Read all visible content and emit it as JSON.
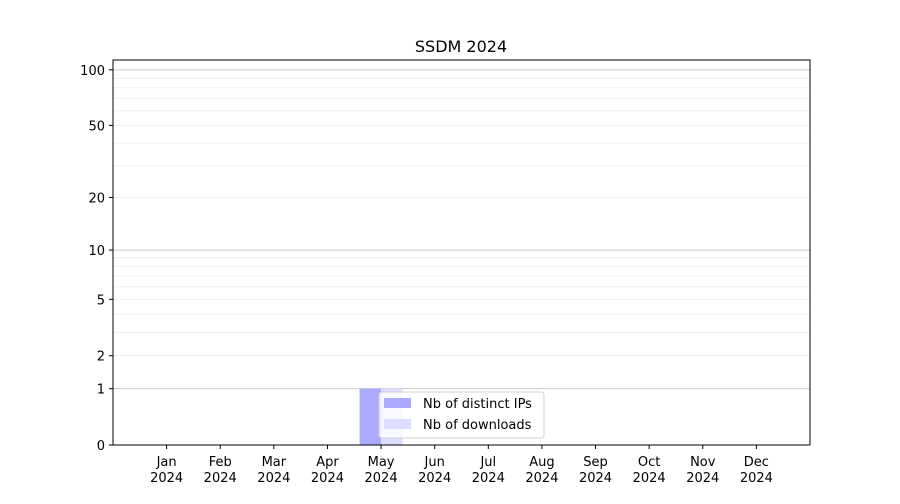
{
  "chart_data": {
    "type": "bar",
    "title": "SSDM 2024",
    "xlabel": "",
    "ylabel": "",
    "yscale": "log(1+y)",
    "ylim": [
      0,
      113
    ],
    "grid": "y major and minor",
    "legend_position": "lower-center",
    "categories": [
      "Jan\n2024",
      "Feb\n2024",
      "Mar\n2024",
      "Apr\n2024",
      "May\n2024",
      "Jun\n2024",
      "Jul\n2024",
      "Aug\n2024",
      "Sep\n2024",
      "Oct\n2024",
      "Nov\n2024",
      "Dec\n2024"
    ],
    "yticks": [
      0,
      1,
      2,
      5,
      10,
      20,
      50,
      100
    ],
    "series": [
      {
        "name": "Nb of distinct IPs",
        "color": "#aaaaff",
        "values": [
          0,
          0,
          0,
          0,
          1,
          0,
          0,
          0,
          0,
          0,
          0,
          0
        ]
      },
      {
        "name": "Nb of downloads",
        "color": "#ddddff",
        "values": [
          0,
          0,
          0,
          0,
          1,
          0,
          0,
          0,
          0,
          0,
          0,
          0
        ]
      }
    ]
  }
}
